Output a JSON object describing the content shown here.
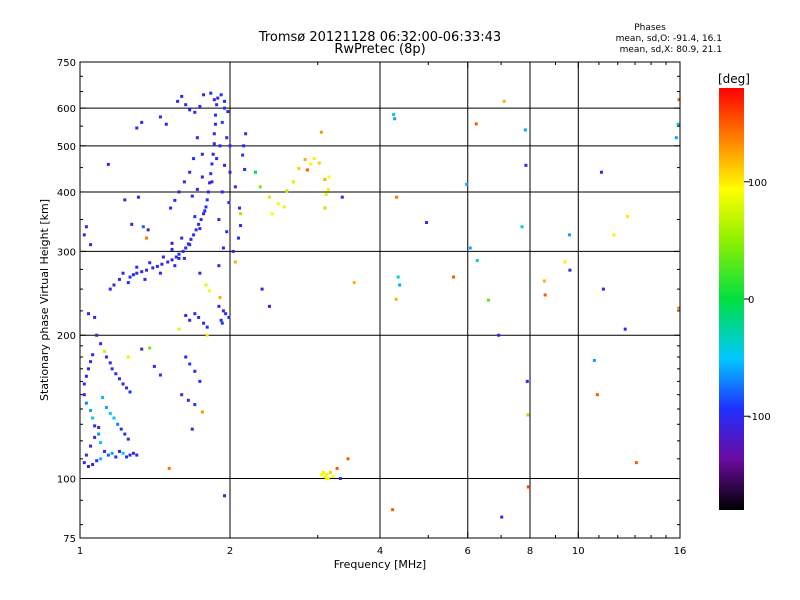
{
  "header": {
    "title_line1": "Tromsø 20121128 06:32:00-06:33:43",
    "title_line2": "RwPretec (8p)",
    "stats_title": "Phases",
    "stats_o": "mean, sd,O:  -91.4, 16.1",
    "stats_x": "mean, sd,X:  80.9, 21.1"
  },
  "colorbar": {
    "label": "[deg]",
    "ticks": [
      {
        "value": 100,
        "label": "100"
      },
      {
        "value": 0,
        "label": "0"
      },
      {
        "value": -100,
        "label": "-100"
      }
    ],
    "range": [
      -180,
      180
    ]
  },
  "chart_data": {
    "type": "scatter",
    "title": "Tromsø 20121128 06:32:00-06:33:43",
    "subtitle": "RwPretec (8p)",
    "xlabel": "Frequency [MHz]",
    "ylabel": "Stationary phase Virtual Height [km]",
    "x_scale": "log",
    "y_scale": "log",
    "xlim": [
      1,
      16
    ],
    "ylim": [
      75,
      750
    ],
    "x_ticks": [
      {
        "value": 1,
        "label": "1"
      },
      {
        "value": 2,
        "label": "2"
      },
      {
        "value": 4,
        "label": "4"
      },
      {
        "value": 6,
        "label": "6"
      },
      {
        "value": 8,
        "label": "8"
      },
      {
        "value": 10,
        "label": "10"
      },
      {
        "value": 16,
        "label": "16"
      }
    ],
    "y_ticks": [
      {
        "value": 75,
        "label": "75"
      },
      {
        "value": 100,
        "label": "100"
      },
      {
        "value": 200,
        "label": "200"
      },
      {
        "value": 300,
        "label": "300"
      },
      {
        "value": 400,
        "label": "400"
      },
      {
        "value": 500,
        "label": "500"
      },
      {
        "value": 600,
        "label": "600"
      },
      {
        "value": 750,
        "label": "750"
      }
    ],
    "grid_x": [
      2,
      4,
      6,
      8,
      10
    ],
    "grid_y": [
      100,
      200,
      300,
      400,
      500,
      600
    ],
    "grid": true,
    "color_scale": "phase [deg], rainbow, -180 to 180",
    "points": [
      [
        1.26,
        265,
        -105
      ],
      [
        1.28,
        268,
        -100
      ],
      [
        1.3,
        270,
        -95
      ],
      [
        1.33,
        272,
        -100
      ],
      [
        1.36,
        274,
        -110
      ],
      [
        1.4,
        277,
        -100
      ],
      [
        1.43,
        279,
        -95
      ],
      [
        1.46,
        282,
        -105
      ],
      [
        1.5,
        285,
        -100
      ],
      [
        1.53,
        288,
        -110
      ],
      [
        1.56,
        292,
        -100
      ],
      [
        1.58,
        296,
        -95
      ],
      [
        1.61,
        300,
        -105
      ],
      [
        1.63,
        305,
        -100
      ],
      [
        1.65,
        311,
        -110
      ],
      [
        1.67,
        318,
        -100
      ],
      [
        1.69,
        325,
        -95
      ],
      [
        1.71,
        333,
        -105
      ],
      [
        1.73,
        342,
        -100
      ],
      [
        1.75,
        350,
        -110
      ],
      [
        1.77,
        360,
        -100
      ],
      [
        1.79,
        372,
        -95
      ],
      [
        1.8,
        385,
        -105
      ],
      [
        1.81,
        400,
        -100
      ],
      [
        1.82,
        418,
        -110
      ],
      [
        1.83,
        437,
        -100
      ],
      [
        1.84,
        458,
        -95
      ],
      [
        1.85,
        480,
        -105
      ],
      [
        1.86,
        505,
        -100
      ],
      [
        1.86,
        530,
        -110
      ],
      [
        1.87,
        555,
        -100
      ],
      [
        1.87,
        580,
        -95
      ],
      [
        1.88,
        610,
        -100
      ],
      [
        1.89,
        630,
        -105
      ],
      [
        1.93,
        400,
        -100
      ],
      [
        1.95,
        455,
        -110
      ],
      [
        1.9,
        350,
        -100
      ],
      [
        1.93,
        560,
        -90
      ],
      [
        1.95,
        600,
        -95
      ],
      [
        1.97,
        520,
        -100
      ],
      [
        1.72,
        405,
        -105
      ],
      [
        1.76,
        430,
        -110
      ],
      [
        1.68,
        392,
        -100
      ],
      [
        1.7,
        355,
        -95
      ],
      [
        1.6,
        320,
        -105
      ],
      [
        1.53,
        303,
        -100
      ],
      [
        1.47,
        292,
        -110
      ],
      [
        1.38,
        284,
        -100
      ],
      [
        1.3,
        278,
        -95
      ],
      [
        1.22,
        270,
        -105
      ],
      [
        1.2,
        262,
        -100
      ],
      [
        1.17,
        255,
        -110
      ],
      [
        1.15,
        250,
        -100
      ],
      [
        1.25,
        258,
        -95
      ],
      [
        1.35,
        262,
        -105
      ],
      [
        1.45,
        270,
        -100
      ],
      [
        1.55,
        280,
        -110
      ],
      [
        1.62,
        290,
        -100
      ],
      [
        1.66,
        310,
        -95
      ],
      [
        1.74,
        335,
        -105
      ],
      [
        1.78,
        365,
        -100
      ],
      [
        1.84,
        420,
        -110
      ],
      [
        1.88,
        470,
        -100
      ],
      [
        1.91,
        500,
        -95
      ],
      [
        1.57,
        620,
        -100
      ],
      [
        1.6,
        635,
        -105
      ],
      [
        1.63,
        610,
        -110
      ],
      [
        1.66,
        595,
        -100
      ],
      [
        1.7,
        588,
        -95
      ],
      [
        1.74,
        605,
        -100
      ],
      [
        1.77,
        640,
        -105
      ],
      [
        1.83,
        645,
        -100
      ],
      [
        1.86,
        625,
        -110
      ],
      [
        1.92,
        640,
        -95
      ],
      [
        1.95,
        620,
        -100
      ],
      [
        1.98,
        590,
        -105
      ],
      [
        2.0,
        500,
        -100
      ],
      [
        2.0,
        440,
        -110
      ],
      [
        1.99,
        380,
        -95
      ],
      [
        1.97,
        330,
        -100
      ],
      [
        1.94,
        305,
        -105
      ],
      [
        1.9,
        280,
        -100
      ],
      [
        1.76,
        480,
        -110
      ],
      [
        1.72,
        520,
        -100
      ],
      [
        1.69,
        470,
        -95
      ],
      [
        1.66,
        440,
        -105
      ],
      [
        1.62,
        420,
        -100
      ],
      [
        1.58,
        400,
        -110
      ],
      [
        1.55,
        384,
        -100
      ],
      [
        1.52,
        370,
        -95
      ],
      [
        1.49,
        555,
        -100
      ],
      [
        1.45,
        575,
        -105
      ],
      [
        1.33,
        560,
        -100
      ],
      [
        1.3,
        545,
        -95
      ],
      [
        1.14,
        457,
        -105
      ],
      [
        1.23,
        385,
        -110
      ],
      [
        1.31,
        390,
        -95
      ],
      [
        1.27,
        342,
        -100
      ],
      [
        1.34,
        338,
        -80
      ],
      [
        1.37,
        333,
        -120
      ],
      [
        1.36,
        320,
        140
      ],
      [
        1.53,
        312,
        -130
      ],
      [
        1.58,
        290,
        -100
      ],
      [
        1.74,
        270,
        -100
      ],
      [
        1.79,
        255,
        80
      ],
      [
        1.82,
        248,
        90
      ],
      [
        2.13,
        500,
        -100
      ],
      [
        2.15,
        530,
        -105
      ],
      [
        2.12,
        478,
        -95
      ],
      [
        2.14,
        446,
        -100
      ],
      [
        2.09,
        370,
        -110
      ],
      [
        2.1,
        340,
        -100
      ],
      [
        2.08,
        320,
        -95
      ],
      [
        2.03,
        300,
        -105
      ],
      [
        2.05,
        410,
        -100
      ],
      [
        2.25,
        440,
        0
      ],
      [
        2.3,
        410,
        40
      ],
      [
        2.4,
        390,
        70
      ],
      [
        2.43,
        360,
        90
      ],
      [
        2.5,
        378,
        95
      ],
      [
        2.57,
        372,
        80
      ],
      [
        2.6,
        402,
        60
      ],
      [
        2.68,
        420,
        75
      ],
      [
        2.75,
        448,
        110
      ],
      [
        2.83,
        468,
        120
      ],
      [
        2.9,
        458,
        90
      ],
      [
        2.95,
        470,
        100
      ],
      [
        3.02,
        460,
        110
      ],
      [
        3.1,
        425,
        120
      ],
      [
        3.15,
        405,
        100
      ],
      [
        3.05,
        534,
        130
      ],
      [
        2.1,
        360,
        50
      ],
      [
        1.02,
        325,
        -110
      ],
      [
        1.03,
        338,
        -100
      ],
      [
        1.05,
        310,
        -105
      ],
      [
        1.04,
        222,
        -100
      ],
      [
        1.07,
        218,
        -110
      ],
      [
        1.08,
        200,
        -120
      ],
      [
        1.1,
        192,
        -100
      ],
      [
        1.12,
        185,
        70
      ],
      [
        1.13,
        180,
        -110
      ],
      [
        1.15,
        175,
        -100
      ],
      [
        1.16,
        170,
        -95
      ],
      [
        1.18,
        166,
        -105
      ],
      [
        1.2,
        162,
        -100
      ],
      [
        1.22,
        158,
        -110
      ],
      [
        1.24,
        155,
        -100
      ],
      [
        1.26,
        152,
        -95
      ],
      [
        1.06,
        182,
        -105
      ],
      [
        1.05,
        176,
        -100
      ],
      [
        1.04,
        170,
        -110
      ],
      [
        1.03,
        164,
        -100
      ],
      [
        1.02,
        158,
        -95
      ],
      [
        1.02,
        150,
        -105
      ],
      [
        1.03,
        144,
        -70
      ],
      [
        1.05,
        139,
        -60
      ],
      [
        1.06,
        134,
        -40
      ],
      [
        1.07,
        129,
        -100
      ],
      [
        1.09,
        124,
        -65
      ],
      [
        1.1,
        119,
        -45
      ],
      [
        1.12,
        114,
        -100
      ],
      [
        1.14,
        112,
        -80
      ],
      [
        1.16,
        113,
        -60
      ],
      [
        1.18,
        111,
        -100
      ],
      [
        1.2,
        114,
        -110
      ],
      [
        1.22,
        113,
        -50
      ],
      [
        1.24,
        111,
        -95
      ],
      [
        1.26,
        112,
        -100
      ],
      [
        1.28,
        113,
        -105
      ],
      [
        1.3,
        112,
        -100
      ],
      [
        1.11,
        148,
        -55
      ],
      [
        1.13,
        141,
        -60
      ],
      [
        1.15,
        137,
        -50
      ],
      [
        1.17,
        134,
        -45
      ],
      [
        1.19,
        130,
        -70
      ],
      [
        1.21,
        127,
        -100
      ],
      [
        1.23,
        124,
        -95
      ],
      [
        1.25,
        121,
        -105
      ],
      [
        1.09,
        128,
        -100
      ],
      [
        1.07,
        122,
        -110
      ],
      [
        1.05,
        117,
        -100
      ],
      [
        1.03,
        112,
        -95
      ],
      [
        1.02,
        108,
        -105
      ],
      [
        1.04,
        106,
        -100
      ],
      [
        1.06,
        107,
        -110
      ],
      [
        1.08,
        109,
        -95
      ],
      [
        1.1,
        110,
        -55
      ],
      [
        1.25,
        180,
        100
      ],
      [
        1.33,
        187,
        -110
      ],
      [
        1.38,
        188,
        40
      ],
      [
        1.41,
        172,
        -100
      ],
      [
        1.45,
        165,
        -95
      ],
      [
        1.63,
        220,
        -100
      ],
      [
        1.66,
        215,
        -110
      ],
      [
        1.7,
        222,
        -105
      ],
      [
        1.73,
        218,
        -95
      ],
      [
        1.77,
        212,
        -100
      ],
      [
        1.8,
        208,
        -105
      ],
      [
        1.63,
        180,
        -100
      ],
      [
        1.66,
        174,
        -90
      ],
      [
        1.7,
        168,
        -100
      ],
      [
        1.74,
        160,
        -95
      ],
      [
        1.6,
        150,
        -110
      ],
      [
        1.65,
        146,
        -100
      ],
      [
        1.7,
        143,
        -95
      ],
      [
        1.76,
        138,
        130
      ],
      [
        1.68,
        127,
        -100
      ],
      [
        1.58,
        206,
        80
      ],
      [
        1.8,
        200,
        100
      ],
      [
        1.9,
        230,
        -100
      ],
      [
        1.94,
        225,
        -110
      ],
      [
        1.92,
        215,
        -100
      ],
      [
        1.96,
        222,
        -95
      ],
      [
        1.91,
        240,
        120
      ],
      [
        1.93,
        212,
        -90
      ],
      [
        1.99,
        218,
        -100
      ],
      [
        1.51,
        105,
        140
      ],
      [
        1.95,
        92,
        -120
      ],
      [
        2.32,
        250,
        -100
      ],
      [
        2.4,
        230,
        -110
      ],
      [
        3.05,
        102,
        90
      ],
      [
        3.08,
        103,
        100
      ],
      [
        3.1,
        101,
        95
      ],
      [
        3.13,
        102,
        85
      ],
      [
        3.15,
        100,
        100
      ],
      [
        3.18,
        103,
        110
      ],
      [
        3.12,
        100,
        80
      ],
      [
        3.22,
        101,
        90
      ],
      [
        3.28,
        105,
        150
      ],
      [
        3.33,
        100,
        -100
      ],
      [
        3.45,
        110,
        150
      ],
      [
        3.55,
        258,
        120
      ],
      [
        3.36,
        390,
        -100
      ],
      [
        3.12,
        395,
        80
      ],
      [
        3.16,
        430,
        90
      ],
      [
        2.86,
        445,
        150
      ],
      [
        2.05,
        285,
        120
      ],
      [
        3.1,
        370,
        60
      ],
      [
        4.26,
        582,
        -40
      ],
      [
        4.28,
        570,
        -60
      ],
      [
        4.32,
        390,
        140
      ],
      [
        4.35,
        265,
        -40
      ],
      [
        4.31,
        238,
        120
      ],
      [
        4.38,
        255,
        -60
      ],
      [
        4.24,
        86,
        150
      ],
      [
        4.96,
        345,
        -100
      ],
      [
        5.62,
        265,
        150
      ],
      [
        5.97,
        415,
        -60
      ],
      [
        6.07,
        305,
        -60
      ],
      [
        6.24,
        556,
        150
      ],
      [
        6.27,
        287,
        -30
      ],
      [
        6.6,
        237,
        30
      ],
      [
        6.92,
        200,
        -100
      ],
      [
        7.02,
        83,
        -100
      ],
      [
        7.1,
        620,
        120
      ],
      [
        7.71,
        338,
        -40
      ],
      [
        7.83,
        540,
        -60
      ],
      [
        7.85,
        455,
        -100
      ],
      [
        7.9,
        160,
        -100
      ],
      [
        7.92,
        136,
        50
      ],
      [
        7.94,
        96,
        160
      ],
      [
        8.55,
        260,
        120
      ],
      [
        8.58,
        243,
        150
      ],
      [
        9.4,
        285,
        100
      ],
      [
        9.6,
        325,
        -60
      ],
      [
        9.62,
        274,
        -100
      ],
      [
        10.77,
        177,
        -60
      ],
      [
        10.92,
        150,
        150
      ],
      [
        11.13,
        440,
        -100
      ],
      [
        11.23,
        250,
        -100
      ],
      [
        11.8,
        325,
        100
      ],
      [
        12.42,
        206,
        -100
      ],
      [
        12.55,
        355,
        100
      ],
      [
        13.08,
        108,
        150
      ],
      [
        15.73,
        520,
        -60
      ],
      [
        15.86,
        555,
        -40
      ],
      [
        15.91,
        228,
        140
      ],
      [
        15.93,
        625,
        150
      ]
    ]
  }
}
